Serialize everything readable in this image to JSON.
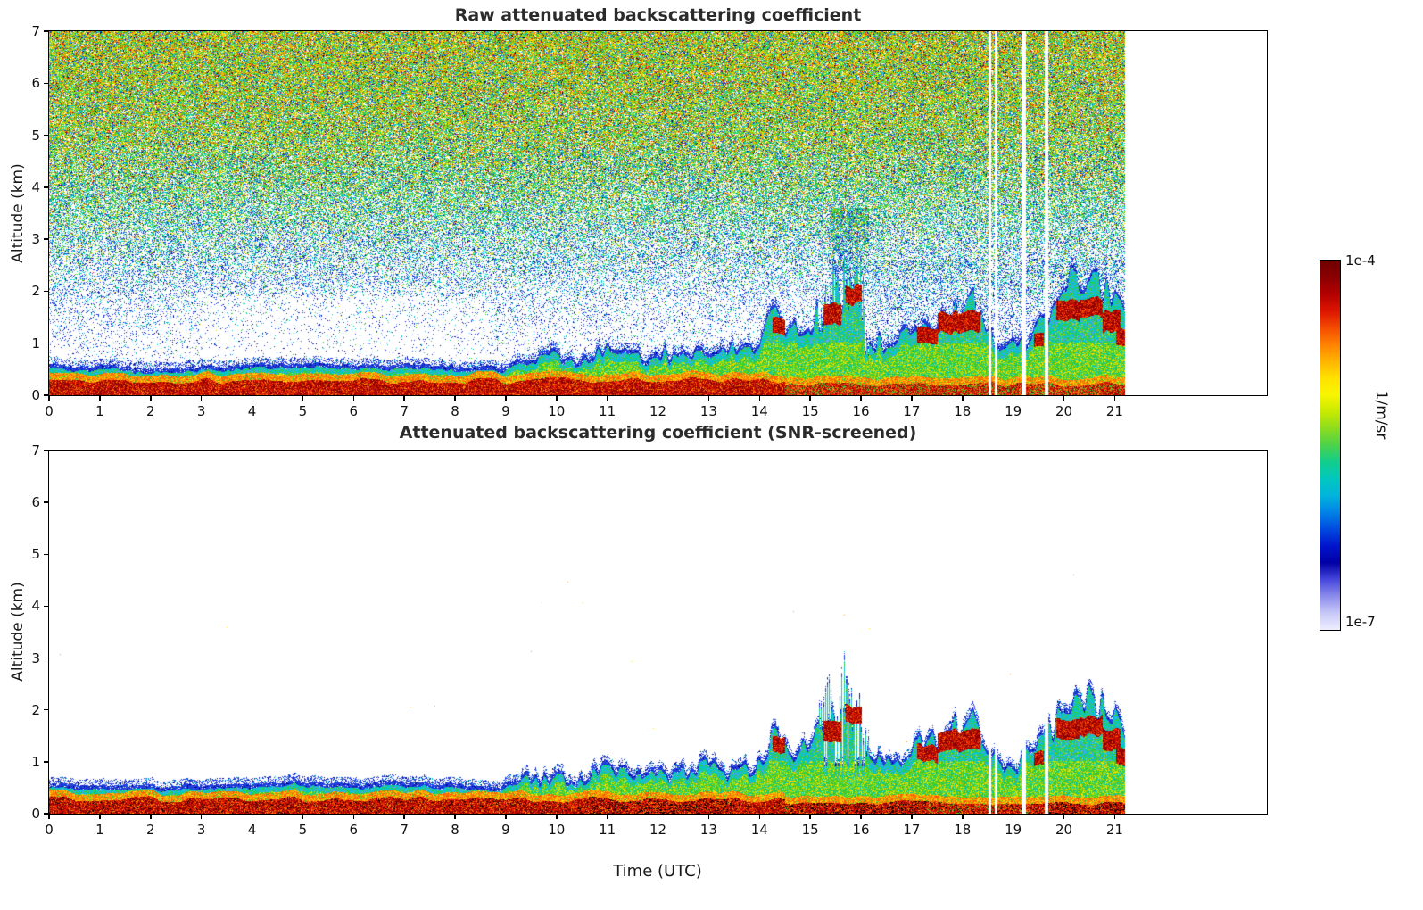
{
  "panels": [
    {
      "title": "Raw attenuated backscattering coefficient"
    },
    {
      "title": "Attenuated backscattering coefficient (SNR-screened)"
    }
  ],
  "axes": {
    "x_label": "Time (UTC)",
    "y_label": "Altitude (km)",
    "x_ticks": [
      0,
      1,
      2,
      3,
      4,
      5,
      6,
      7,
      8,
      9,
      10,
      11,
      12,
      13,
      14,
      15,
      16,
      17,
      18,
      19,
      20,
      21
    ],
    "y_ticks": [
      0,
      1,
      2,
      3,
      4,
      5,
      6,
      7
    ]
  },
  "colorbar": {
    "max_label": "1e-4",
    "min_label": "1e-7",
    "unit_label": "1/m/sr",
    "stops": [
      "#6e0000",
      "#8b0000",
      "#b40000",
      "#dc1400",
      "#f54a00",
      "#ff8200",
      "#ffb400",
      "#ffe100",
      "#f8f500",
      "#c8ea00",
      "#8cdc1e",
      "#4cd24b",
      "#12cd8c",
      "#00c8be",
      "#00b4dc",
      "#0082e6",
      "#004ae0",
      "#0014cd",
      "#0000a5",
      "#4646dc",
      "#8c8cec",
      "#c8c8f8",
      "#eeeeff"
    ]
  },
  "chart_data": {
    "type": "heatmap",
    "x_axis": {
      "label": "Time (UTC)",
      "range_hours": [
        0,
        24
      ],
      "ticks": [
        0,
        1,
        2,
        3,
        4,
        5,
        6,
        7,
        8,
        9,
        10,
        11,
        12,
        13,
        14,
        15,
        16,
        17,
        18,
        19,
        20,
        21
      ],
      "data_end_hour": 21.2
    },
    "y_axis": {
      "label": "Altitude (km)",
      "range_km": [
        0,
        7
      ],
      "ticks": [
        0,
        1,
        2,
        3,
        4,
        5,
        6,
        7
      ]
    },
    "color_scale": {
      "min": 1e-07,
      "max": 0.0001,
      "units": "1/m/sr",
      "type": "log",
      "colormap": "jet-like, pale blue/white at low end, dark red at high end"
    },
    "panels": [
      {
        "name": "raw",
        "title": "Raw attenuated backscattering coefficient",
        "content": "aerosol boundary layer signal near surface plus SNR noise speckle filling the free troposphere; noise density and value increase with altitude (blue sparse dots near 1-2 km, dense green/yellow/orange speckle at 4-7 km)"
      },
      {
        "name": "snr_screened",
        "title": "Attenuated backscattering coefficient (SNR-screened)",
        "content": "noise removed; only boundary-layer aerosol, growing convective structures after 09 UTC and clouds between 14-21.2 UTC remain; white elsewhere"
      }
    ],
    "boundary_layer_top_km": [
      [
        0,
        0.5
      ],
      [
        0.5,
        0.45
      ],
      [
        1,
        0.5
      ],
      [
        1.5,
        0.46
      ],
      [
        2,
        0.44
      ],
      [
        2.5,
        0.47
      ],
      [
        3,
        0.45
      ],
      [
        3.5,
        0.48
      ],
      [
        4,
        0.5
      ],
      [
        4.5,
        0.52
      ],
      [
        5,
        0.55
      ],
      [
        5.5,
        0.5
      ],
      [
        6,
        0.48
      ],
      [
        6.5,
        0.5
      ],
      [
        7,
        0.52
      ],
      [
        7.5,
        0.5
      ],
      [
        8,
        0.48
      ],
      [
        8.5,
        0.42
      ],
      [
        8.8,
        0.36
      ],
      [
        9,
        0.5
      ],
      [
        9.3,
        0.6
      ],
      [
        9.6,
        0.65
      ],
      [
        10,
        0.68
      ],
      [
        10.3,
        0.6
      ],
      [
        10.6,
        0.65
      ],
      [
        11,
        0.85
      ],
      [
        11.3,
        0.75
      ],
      [
        11.6,
        0.65
      ],
      [
        12,
        0.78
      ],
      [
        12.3,
        0.7
      ],
      [
        12.6,
        0.8
      ],
      [
        13,
        0.85
      ],
      [
        13.3,
        0.75
      ],
      [
        13.6,
        0.85
      ],
      [
        14,
        1.0
      ],
      [
        14.3,
        1.45
      ],
      [
        14.6,
        1.1
      ],
      [
        15,
        1.25
      ],
      [
        15.3,
        1.7
      ],
      [
        15.6,
        2.0
      ],
      [
        15.9,
        2.3
      ],
      [
        16.1,
        1.3
      ],
      [
        16.3,
        1.0
      ],
      [
        16.6,
        0.95
      ],
      [
        17,
        1.1
      ],
      [
        17.3,
        1.35
      ],
      [
        17.6,
        1.45
      ],
      [
        18,
        1.6
      ],
      [
        18.2,
        1.65
      ],
      [
        18.4,
        1.3
      ],
      [
        18.6,
        1.1
      ],
      [
        18.8,
        1.0
      ],
      [
        19,
        0.95
      ],
      [
        19.2,
        1.0
      ],
      [
        19.4,
        1.15
      ],
      [
        19.6,
        1.3
      ],
      [
        19.8,
        1.6
      ],
      [
        20,
        2.0
      ],
      [
        20.2,
        2.15
      ],
      [
        20.4,
        2.2
      ],
      [
        20.6,
        2.1
      ],
      [
        20.8,
        1.9
      ],
      [
        21,
        1.7
      ],
      [
        21.2,
        1.55
      ]
    ],
    "surface_red_band_top_km": [
      0.27,
      0.2
    ],
    "surface_red_band_change_hour": 14.5,
    "cloud_red_bands": [
      [
        14.25,
        14.5,
        1.15,
        1.45
      ],
      [
        15.25,
        15.6,
        1.35,
        1.75
      ],
      [
        15.7,
        16.0,
        1.75,
        2.08
      ],
      [
        17.1,
        17.5,
        1.0,
        1.3
      ],
      [
        17.5,
        18.35,
        1.2,
        1.58
      ],
      [
        19.4,
        19.6,
        0.9,
        1.15
      ],
      [
        19.85,
        20.3,
        1.42,
        1.8
      ],
      [
        20.3,
        20.75,
        1.5,
        1.85
      ],
      [
        20.75,
        21.1,
        1.2,
        1.6
      ],
      [
        21.02,
        21.2,
        0.92,
        1.25
      ]
    ],
    "missing_data_intervals_utc": [
      [
        18.5,
        18.56
      ],
      [
        18.63,
        18.69
      ],
      [
        19.15,
        19.25
      ],
      [
        19.62,
        19.68
      ]
    ],
    "screened_surface_black_ranges": [
      [
        10.7,
        13.5
      ],
      [
        14.6,
        17.3
      ],
      [
        19.3,
        21.2
      ]
    ],
    "screened_black_patches": [
      [
        18.85,
        19.12,
        0.5,
        0.8
      ],
      [
        20.8,
        21.15,
        0.8,
        1.05
      ],
      [
        15.9,
        16.08,
        0.75,
        0.98
      ]
    ],
    "screened_blue_patch": [
      17.72,
      18.05,
      0.5,
      0.9
    ],
    "render": {
      "palette": {
        "darkred": "#8b0000",
        "red": "#e01800",
        "orangered": "#ff5a00",
        "orange": "#ff9c00",
        "yellow": "#ffdc00",
        "ygreen": "#b4e400",
        "green": "#3ecc32",
        "cyan": "#00c8c8",
        "lightblue": "#50a0ff",
        "blue": "#2040dd",
        "dblue": "#000096",
        "black": "#000000"
      },
      "noise_density_profile": [
        [
          0.0,
          0.0
        ],
        [
          0.7,
          0.06
        ],
        [
          1.2,
          0.1
        ],
        [
          1.8,
          0.18
        ],
        [
          2.4,
          0.32
        ],
        [
          3.0,
          0.46
        ],
        [
          3.6,
          0.6
        ],
        [
          4.2,
          0.72
        ],
        [
          5.0,
          0.83
        ],
        [
          6.0,
          0.9
        ],
        [
          7.0,
          0.93
        ]
      ],
      "noise_color_weights_by_altitude": [
        [
          1.0,
          {
            "blue": 0.55,
            "dblue": 0.17,
            "cyan": 0.2,
            "green": 0.05,
            "lightblue": 0.03
          }
        ],
        [
          2.0,
          {
            "blue": 0.44,
            "dblue": 0.09,
            "cyan": 0.3,
            "green": 0.11,
            "lightblue": 0.04,
            "yellow": 0.02
          }
        ],
        [
          3.5,
          {
            "blue": 0.17,
            "dblue": 0.03,
            "cyan": 0.3,
            "green": 0.28,
            "ygreen": 0.08,
            "yellow": 0.07,
            "orange": 0.04,
            "red": 0.02,
            "lightblue": 0.01
          }
        ],
        [
          5.0,
          {
            "blue": 0.09,
            "dblue": 0.01,
            "cyan": 0.15,
            "green": 0.29,
            "ygreen": 0.13,
            "yellow": 0.13,
            "orange": 0.12,
            "red": 0.06,
            "lightblue": 0.02
          }
        ],
        [
          7.0,
          {
            "blue": 0.07,
            "dblue": 0.01,
            "cyan": 0.1,
            "green": 0.25,
            "ygreen": 0.14,
            "yellow": 0.16,
            "orange": 0.16,
            "red": 0.09,
            "lightblue": 0.02
          }
        ]
      ]
    }
  }
}
